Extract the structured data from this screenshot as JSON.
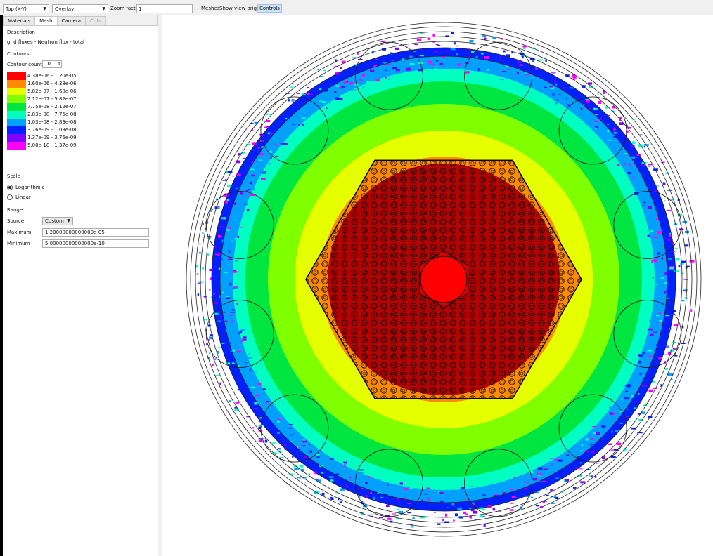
{
  "toolbar": {
    "view": "Top (X-Y)",
    "mode": "Overlay",
    "zoom_label": "Zoom factor",
    "zoom_value": "1",
    "meshes": "Meshes",
    "show_origin": "Show view origin",
    "controls": "Controls"
  },
  "tabs": [
    "Materials",
    "Mesh",
    "Camera",
    "Cuts"
  ],
  "panel": {
    "description_label": "Description",
    "description_value": "grid fluxes - Neutron flux - total",
    "contours_label": "Contours",
    "contour_count_label": "Contour count",
    "contour_count_value": "10",
    "scale_label": "Scale",
    "scale_log": "Logarithmic",
    "scale_linear": "Linear",
    "range_label": "Range",
    "source_label": "Source",
    "source_value": "Custom",
    "maximum_label": "Maximum",
    "maximum_value": "1.20000000000000e-05",
    "minimum_label": "Minimum",
    "minimum_value": "5.00000000000000e-10"
  },
  "legend": [
    {
      "label": "4.38e-06 - 1.20e-05",
      "color": "#ff0000"
    },
    {
      "label": "1.60e-06 - 4.38e-06",
      "color": "#ff8c00"
    },
    {
      "label": "5.82e-07 - 1.60e-06",
      "color": "#e6ff00"
    },
    {
      "label": "2.12e-07 - 5.82e-07",
      "color": "#7fff00"
    },
    {
      "label": "7.75e-08 - 2.12e-07",
      "color": "#00e640"
    },
    {
      "label": "2.83e-08 - 7.75e-08",
      "color": "#00ffc0"
    },
    {
      "label": "1.03e-08 - 2.83e-08",
      "color": "#00a0ff"
    },
    {
      "label": "3.76e-09 - 1.03e-08",
      "color": "#0020ff"
    },
    {
      "label": "1.37e-09 - 3.76e-09",
      "color": "#7f00ff"
    },
    {
      "label": "5.00e-10 - 1.37e-09",
      "color": "#ff00ff"
    }
  ]
}
